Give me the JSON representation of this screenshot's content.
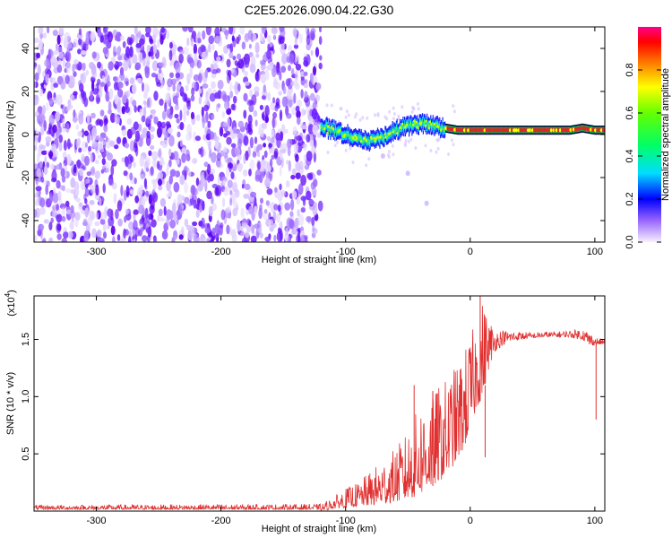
{
  "title": "C2E5.2026.090.04.22.G30",
  "chart_data": [
    {
      "type": "heatmap",
      "name": "spectrogram",
      "xlabel": "Height of straight line (km)",
      "ylabel": "Frequency (Hz)",
      "xlim": [
        -350,
        108
      ],
      "ylim": [
        -50,
        50
      ],
      "xticks": [
        -300,
        -200,
        -100,
        0,
        100
      ],
      "yticks": [
        -40,
        -20,
        0,
        20,
        40
      ],
      "noise_region_x": [
        -350,
        -120
      ],
      "noise_blob_count": 1800,
      "ridge": {
        "x": [
          -120,
          -110,
          -100,
          -95,
          -90,
          -80,
          -70,
          -60,
          -50,
          -40,
          -30,
          -20,
          -10,
          0,
          10,
          20,
          30,
          40,
          50,
          60,
          70,
          80,
          90,
          100,
          108
        ],
        "freq": [
          4,
          2,
          0,
          -1,
          -2,
          -3,
          -1,
          2,
          4,
          5,
          4,
          3,
          2,
          2,
          2,
          2,
          2,
          2,
          2,
          2,
          2,
          2,
          3,
          2,
          2
        ]
      },
      "tail": {
        "x": [
          -70,
          -50,
          -35
        ],
        "freq": [
          -10,
          -18,
          -32
        ]
      },
      "colorbar": {
        "label": "Normalized spectral amplitude",
        "ticks": [
          0.0,
          0.2,
          0.4,
          0.6,
          0.8
        ],
        "range": [
          0,
          1
        ]
      }
    },
    {
      "type": "line",
      "name": "snr",
      "xlabel": "Height of straight line (km)",
      "ylabel": "SNR (10 * v/v)",
      "yscale_label": "(x10",
      "yscale_exp": "4",
      "xlim": [
        -350,
        108
      ],
      "ylim": [
        0,
        1.88
      ],
      "xticks": [
        -300,
        -200,
        -100,
        0,
        100
      ],
      "yticks": [
        0.5,
        1.0,
        1.5
      ],
      "ytick_labels": [
        "0.5",
        "1.0",
        "1.5"
      ],
      "color": "#e03030",
      "envelope": {
        "x": [
          -350,
          -120,
          -110,
          -100,
          -90,
          -80,
          -70,
          -60,
          -50,
          -40,
          -30,
          -20,
          -10,
          -5,
          0,
          5,
          10,
          15,
          20,
          30,
          40,
          50,
          60,
          70,
          80,
          90,
          95,
          100,
          108
        ],
        "low": [
          0.0,
          0.0,
          0.02,
          0.03,
          0.04,
          0.05,
          0.06,
          0.08,
          0.1,
          0.15,
          0.22,
          0.3,
          0.45,
          0.55,
          0.7,
          0.9,
          1.0,
          1.25,
          1.4,
          1.48,
          1.5,
          1.51,
          1.52,
          1.52,
          1.52,
          1.5,
          1.45,
          1.45,
          1.46
        ],
        "high": [
          0.05,
          0.06,
          0.12,
          0.2,
          0.25,
          0.35,
          0.45,
          0.55,
          0.7,
          0.95,
          1.05,
          1.15,
          1.3,
          1.4,
          1.55,
          1.65,
          1.85,
          1.7,
          1.6,
          1.58,
          1.57,
          1.56,
          1.57,
          1.57,
          1.58,
          1.6,
          1.58,
          1.52,
          1.5
        ]
      },
      "spikes": [
        {
          "x": 8,
          "y": 1.88
        },
        {
          "x": 12,
          "y": 0.47
        },
        {
          "x": 101,
          "y": 0.8
        },
        {
          "x": -45,
          "y": 1.1
        },
        {
          "x": -30,
          "y": 1.05
        }
      ]
    }
  ]
}
